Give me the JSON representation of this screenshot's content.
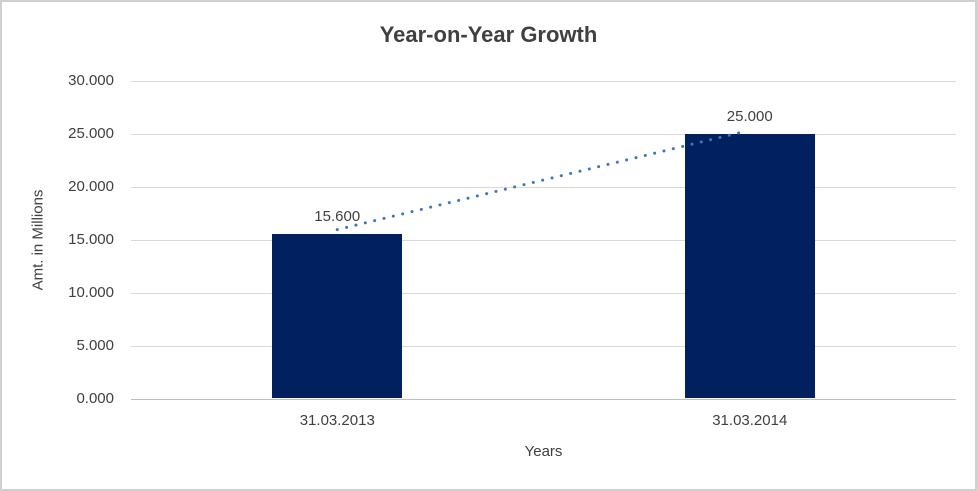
{
  "chart_data": {
    "type": "bar",
    "title": "Year-on-Year Growth",
    "categories": [
      "31.03.2013",
      "31.03.2014"
    ],
    "values": [
      15.6,
      25.0
    ],
    "value_labels": [
      "15.600",
      "25.000"
    ],
    "xlabel": "Years",
    "ylabel": "Amt. in Millions",
    "ylim": [
      0,
      30
    ],
    "ytick_step": 5,
    "ytick_labels": [
      "0.000",
      "5.000",
      "10.000",
      "15.000",
      "20.000",
      "25.000",
      "30.000"
    ],
    "grid": true,
    "legend": "none",
    "trendline": {
      "style": "dotted",
      "from_category": 0,
      "to_category": 1,
      "color": "#3f76b6"
    },
    "colors": {
      "bar": "#002060",
      "title_text": "#404040",
      "axis_text": "#404040",
      "gridline": "#d9d9d9",
      "axis_line": "#bfbfbf",
      "frame_border": "#d0d0d0"
    }
  }
}
